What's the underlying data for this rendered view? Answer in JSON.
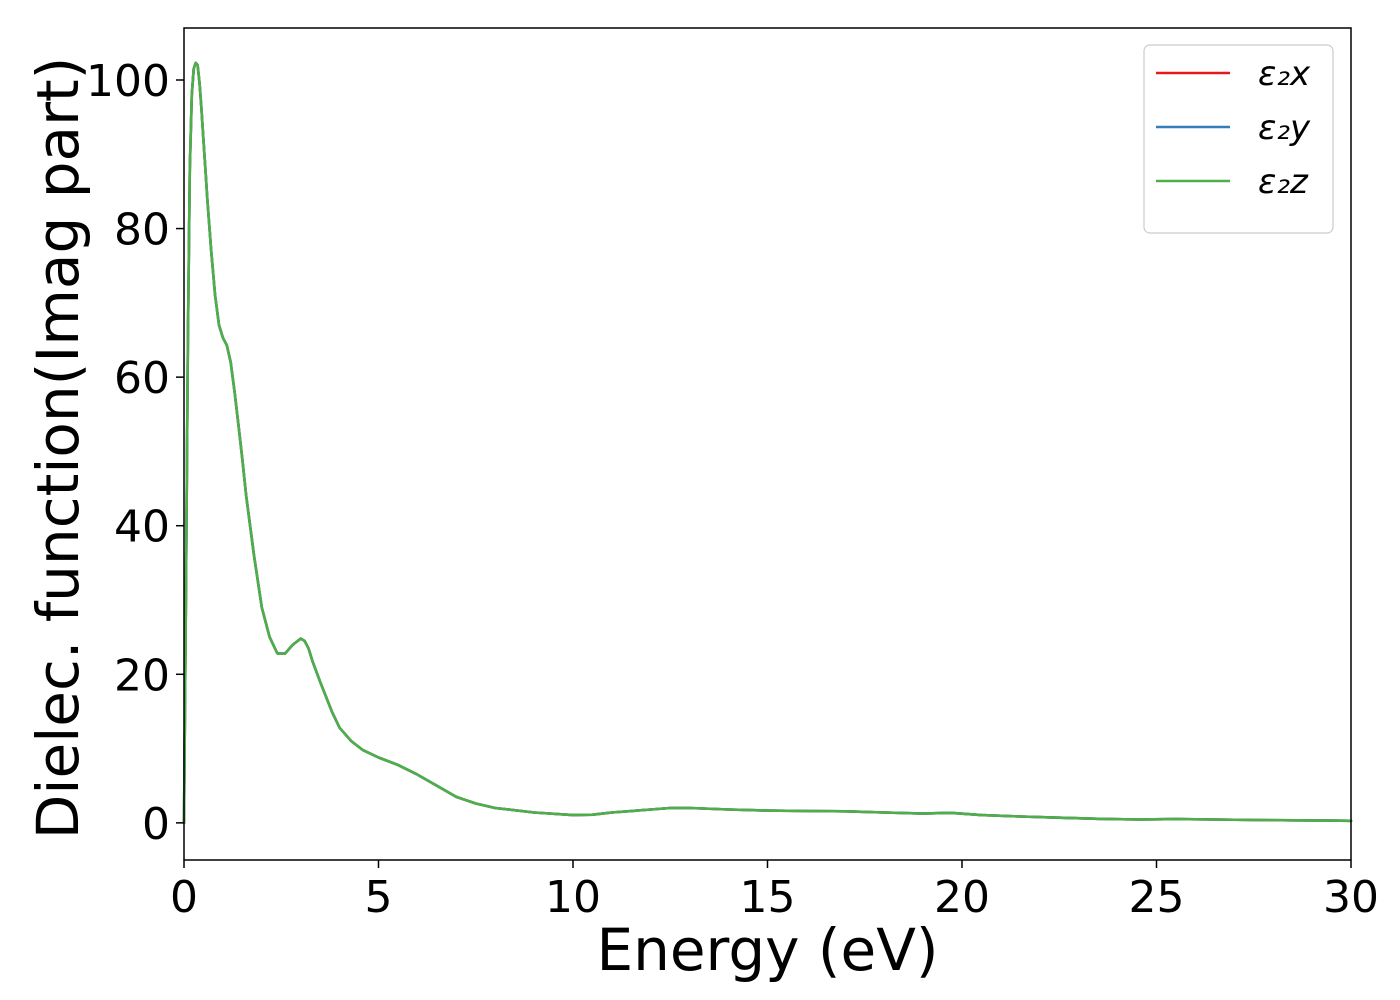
{
  "chart_data": {
    "type": "line",
    "title": "",
    "xlabel": "Energy (eV)",
    "ylabel": "Dielec. function(Imag part)",
    "xlim": [
      0,
      30
    ],
    "ylim": [
      -5,
      107
    ],
    "xticks": [
      0,
      5,
      10,
      15,
      20,
      25,
      30
    ],
    "yticks": [
      0,
      20,
      40,
      60,
      80,
      100
    ],
    "grid": false,
    "legend_position": "top-right",
    "x": [
      0,
      0.05,
      0.1,
      0.15,
      0.2,
      0.25,
      0.3,
      0.35,
      0.4,
      0.45,
      0.5,
      0.55,
      0.6,
      0.7,
      0.8,
      0.9,
      1.0,
      1.1,
      1.2,
      1.3,
      1.4,
      1.5,
      1.6,
      1.8,
      2.0,
      2.2,
      2.4,
      2.6,
      2.8,
      3.0,
      3.1,
      3.2,
      3.3,
      3.5,
      3.8,
      4.0,
      4.3,
      4.6,
      5.0,
      5.5,
      6.0,
      6.5,
      7.0,
      7.5,
      8.0,
      9.0,
      10.0,
      10.5,
      11.0,
      12.0,
      12.5,
      13.0,
      14.0,
      15.0,
      16.0,
      17.0,
      18.0,
      19.0,
      19.7,
      20.5,
      21.5,
      22.5,
      23.5,
      24.5,
      25.5,
      26.5,
      27.5,
      28.5,
      29.5,
      30.0
    ],
    "series": [
      {
        "name": "ε₂x",
        "color": "#e41a1c",
        "values": [
          0,
          30,
          65,
          88,
          98,
          101.5,
          102.3,
          102,
          99.5,
          96,
          92,
          88,
          84,
          77,
          71,
          67,
          65.3,
          64.3,
          62,
          58,
          53.5,
          49,
          44,
          36,
          29,
          25,
          22.8,
          22.8,
          24,
          24.8,
          24.5,
          23.5,
          21.8,
          19,
          15,
          12.8,
          11,
          9.8,
          8.8,
          7.8,
          6.5,
          5,
          3.5,
          2.6,
          2.0,
          1.4,
          1.05,
          1.1,
          1.4,
          1.8,
          2.0,
          2.0,
          1.8,
          1.65,
          1.6,
          1.55,
          1.4,
          1.25,
          1.35,
          1.05,
          0.85,
          0.7,
          0.55,
          0.45,
          0.5,
          0.45,
          0.38,
          0.35,
          0.3,
          0.28
        ]
      },
      {
        "name": "ε₂y",
        "color": "#377eb8",
        "values": [
          0,
          30,
          65,
          88,
          98,
          101.5,
          102.3,
          102,
          99.5,
          96,
          92,
          88,
          84,
          77,
          71,
          67,
          65.3,
          64.3,
          62,
          58,
          53.5,
          49,
          44,
          36,
          29,
          25,
          22.8,
          22.8,
          24,
          24.8,
          24.5,
          23.5,
          21.8,
          19,
          15,
          12.8,
          11,
          9.8,
          8.8,
          7.8,
          6.5,
          5,
          3.5,
          2.6,
          2.0,
          1.4,
          1.05,
          1.1,
          1.4,
          1.8,
          2.0,
          2.0,
          1.8,
          1.65,
          1.6,
          1.55,
          1.4,
          1.25,
          1.35,
          1.05,
          0.85,
          0.7,
          0.55,
          0.45,
          0.5,
          0.45,
          0.38,
          0.35,
          0.3,
          0.28
        ]
      },
      {
        "name": "ε₂z",
        "color": "#4daf4a",
        "values": [
          0,
          30,
          65,
          88,
          98,
          101.5,
          102.3,
          102,
          99.5,
          96,
          92,
          88,
          84,
          77,
          71,
          67,
          65.3,
          64.3,
          62,
          58,
          53.5,
          49,
          44,
          36,
          29,
          25,
          22.8,
          22.8,
          24,
          24.8,
          24.5,
          23.5,
          21.8,
          19,
          15,
          12.8,
          11,
          9.8,
          8.8,
          7.8,
          6.5,
          5,
          3.5,
          2.6,
          2.0,
          1.4,
          1.05,
          1.1,
          1.4,
          1.8,
          2.0,
          2.0,
          1.8,
          1.65,
          1.6,
          1.55,
          1.4,
          1.25,
          1.35,
          1.05,
          0.85,
          0.7,
          0.55,
          0.45,
          0.5,
          0.45,
          0.38,
          0.35,
          0.3,
          0.28
        ]
      }
    ]
  }
}
